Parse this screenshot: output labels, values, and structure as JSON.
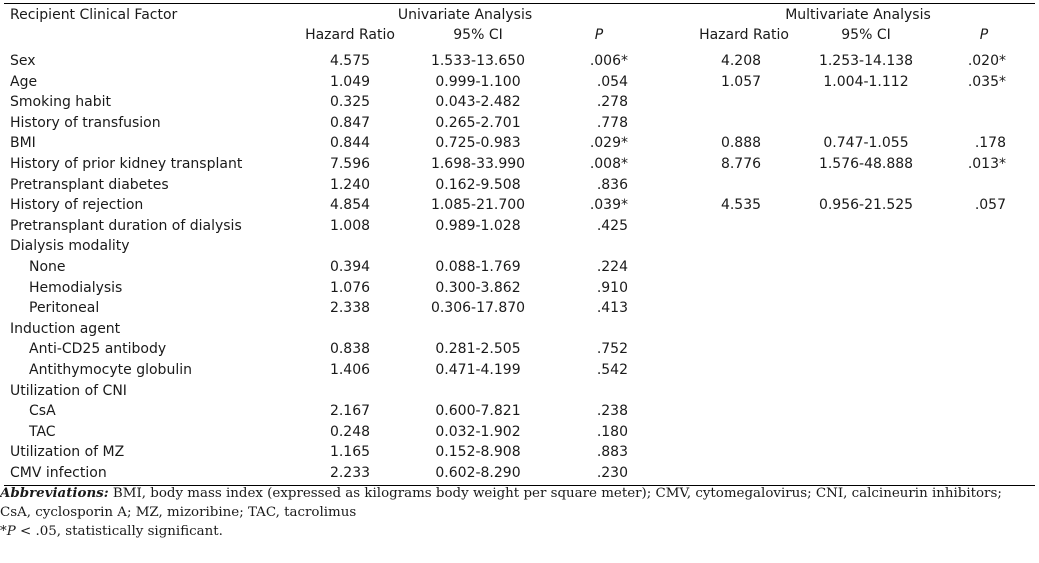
{
  "table": {
    "header": {
      "factor": "Recipient Clinical Factor",
      "univariate": "Univariate Analysis",
      "multivariate": "Multivariate Analysis",
      "hr": "Hazard Ratio",
      "ci": "95% CI",
      "p": "P"
    },
    "rows": [
      {
        "label": "Sex",
        "sub": false,
        "u_hr": "4.575",
        "u_ci": "1.533-13.650",
        "u_p": ".006*",
        "m_hr": "4.208",
        "m_ci": "1.253-14.138",
        "m_p": ".020*"
      },
      {
        "label": "Age",
        "sub": false,
        "u_hr": "1.049",
        "u_ci": "0.999-1.100",
        "u_p": ".054",
        "m_hr": "1.057",
        "m_ci": "1.004-1.112",
        "m_p": ".035*"
      },
      {
        "label": "Smoking habit",
        "sub": false,
        "u_hr": "0.325",
        "u_ci": "0.043-2.482",
        "u_p": ".278",
        "m_hr": "",
        "m_ci": "",
        "m_p": ""
      },
      {
        "label": "History of transfusion",
        "sub": false,
        "u_hr": "0.847",
        "u_ci": "0.265-2.701",
        "u_p": ".778",
        "m_hr": "",
        "m_ci": "",
        "m_p": ""
      },
      {
        "label": "BMI",
        "sub": false,
        "u_hr": "0.844",
        "u_ci": "0.725-0.983",
        "u_p": ".029*",
        "m_hr": "0.888",
        "m_ci": "0.747-1.055",
        "m_p": ".178"
      },
      {
        "label": "History of prior kidney transplant",
        "sub": false,
        "u_hr": "7.596",
        "u_ci": "1.698-33.990",
        "u_p": ".008*",
        "m_hr": "8.776",
        "m_ci": "1.576-48.888",
        "m_p": ".013*"
      },
      {
        "label": "Pretransplant diabetes",
        "sub": false,
        "u_hr": "1.240",
        "u_ci": "0.162-9.508",
        "u_p": ".836",
        "m_hr": "",
        "m_ci": "",
        "m_p": ""
      },
      {
        "label": "History of rejection",
        "sub": false,
        "u_hr": "4.854",
        "u_ci": "1.085-21.700",
        "u_p": ".039*",
        "m_hr": "4.535",
        "m_ci": "0.956-21.525",
        "m_p": ".057"
      },
      {
        "label": "Pretransplant duration of dialysis",
        "sub": false,
        "u_hr": "1.008",
        "u_ci": "0.989-1.028",
        "u_p": ".425",
        "m_hr": "",
        "m_ci": "",
        "m_p": ""
      },
      {
        "label": "Dialysis modality",
        "sub": false,
        "u_hr": "",
        "u_ci": "",
        "u_p": "",
        "m_hr": "",
        "m_ci": "",
        "m_p": ""
      },
      {
        "label": "None",
        "sub": true,
        "u_hr": "0.394",
        "u_ci": "0.088-1.769",
        "u_p": ".224",
        "m_hr": "",
        "m_ci": "",
        "m_p": ""
      },
      {
        "label": "Hemodialysis",
        "sub": true,
        "u_hr": "1.076",
        "u_ci": "0.300-3.862",
        "u_p": ".910",
        "m_hr": "",
        "m_ci": "",
        "m_p": ""
      },
      {
        "label": "Peritoneal",
        "sub": true,
        "u_hr": "2.338",
        "u_ci": "0.306-17.870",
        "u_p": ".413",
        "m_hr": "",
        "m_ci": "",
        "m_p": ""
      },
      {
        "label": "Induction agent",
        "sub": false,
        "u_hr": "",
        "u_ci": "",
        "u_p": "",
        "m_hr": "",
        "m_ci": "",
        "m_p": ""
      },
      {
        "label": "Anti-CD25 antibody",
        "sub": true,
        "u_hr": "0.838",
        "u_ci": "0.281-2.505",
        "u_p": ".752",
        "m_hr": "",
        "m_ci": "",
        "m_p": ""
      },
      {
        "label": "Antithymocyte globulin",
        "sub": true,
        "u_hr": "1.406",
        "u_ci": "0.471-4.199",
        "u_p": ".542",
        "m_hr": "",
        "m_ci": "",
        "m_p": ""
      },
      {
        "label": "Utilization of CNI",
        "sub": false,
        "u_hr": "",
        "u_ci": "",
        "u_p": "",
        "m_hr": "",
        "m_ci": "",
        "m_p": ""
      },
      {
        "label": "CsA",
        "sub": true,
        "u_hr": "2.167",
        "u_ci": "0.600-7.821",
        "u_p": ".238",
        "m_hr": "",
        "m_ci": "",
        "m_p": ""
      },
      {
        "label": "TAC",
        "sub": true,
        "u_hr": "0.248",
        "u_ci": "0.032-1.902",
        "u_p": ".180",
        "m_hr": "",
        "m_ci": "",
        "m_p": ""
      },
      {
        "label": "Utilization of MZ",
        "sub": false,
        "u_hr": "1.165",
        "u_ci": "0.152-8.908",
        "u_p": ".883",
        "m_hr": "",
        "m_ci": "",
        "m_p": ""
      },
      {
        "label": "CMV infection",
        "sub": false,
        "u_hr": "2.233",
        "u_ci": "0.602-8.290",
        "u_p": ".230",
        "m_hr": "",
        "m_ci": "",
        "m_p": ""
      }
    ]
  },
  "footnotes": {
    "abbrev_label": "Abbreviations:",
    "abbrev_text": " BMI, body mass index (expressed as kilograms body weight per square meter); CMV, cytomegalovirus; CNI, calcineurin inhibitors; CsA, cyclosporin A; MZ, mizoribine; TAC, tacrolimus",
    "sig_star": "*",
    "sig_p": "P",
    "sig_text": " < .05, statistically significant."
  }
}
